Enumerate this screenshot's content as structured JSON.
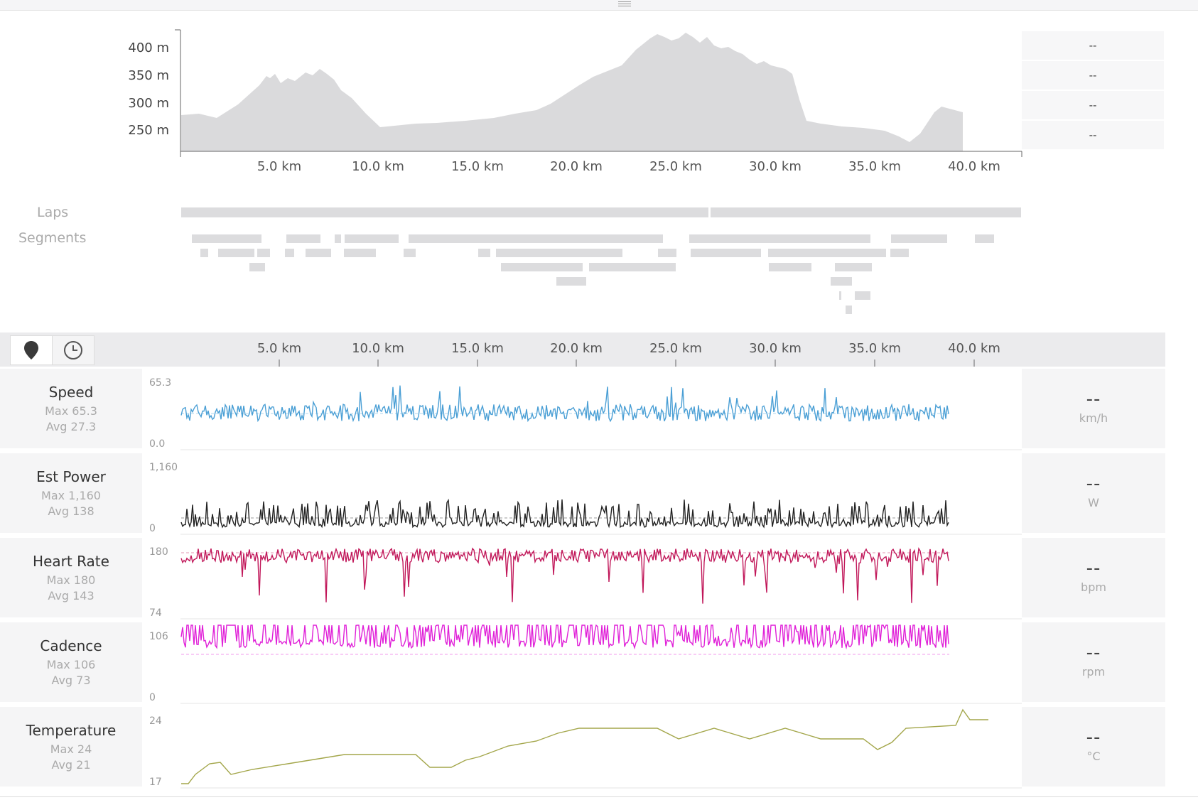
{
  "elevation": {
    "y_ticks": [
      "400 m",
      "350 m",
      "300 m",
      "250 m"
    ],
    "x_ticks": [
      "5.0 km",
      "10.0 km",
      "15.0 km",
      "20.0 km",
      "25.0 km",
      "30.0 km",
      "35.0 km",
      "40.0 km"
    ],
    "side_values": [
      "--",
      "--",
      "--",
      "--"
    ]
  },
  "laps_label": "Laps",
  "segments_label": "Segments",
  "toolbar": {
    "x_ticks": [
      "5.0 km",
      "10.0 km",
      "15.0 km",
      "20.0 km",
      "25.0 km",
      "30.0 km",
      "35.0 km",
      "40.0 km"
    ]
  },
  "metrics": [
    {
      "name": "Speed",
      "max": "Max 65.3",
      "avg": "Avg 27.3",
      "top": "65.3",
      "bottom": "0.0",
      "current": "--",
      "unit": "km/h",
      "color": "#4a9fd5"
    },
    {
      "name": "Est Power",
      "max": "Max 1,160",
      "avg": "Avg 138",
      "top": "1,160",
      "bottom": "0",
      "current": "--",
      "unit": "W",
      "color": "#222222"
    },
    {
      "name": "Heart Rate",
      "max": "Max 180",
      "avg": "Avg 143",
      "top": "180",
      "bottom": "74",
      "current": "--",
      "unit": "bpm",
      "color": "#c1185a"
    },
    {
      "name": "Cadence",
      "max": "Max 106",
      "avg": "Avg 73",
      "top": "106",
      "bottom": "0",
      "current": "--",
      "unit": "rpm",
      "color": "#e020d8"
    },
    {
      "name": "Temperature",
      "max": "Max 24",
      "avg": "Avg 21",
      "top": "24",
      "bottom": "17",
      "current": "--",
      "unit": "°C",
      "color": "#a3a64a"
    }
  ]
}
